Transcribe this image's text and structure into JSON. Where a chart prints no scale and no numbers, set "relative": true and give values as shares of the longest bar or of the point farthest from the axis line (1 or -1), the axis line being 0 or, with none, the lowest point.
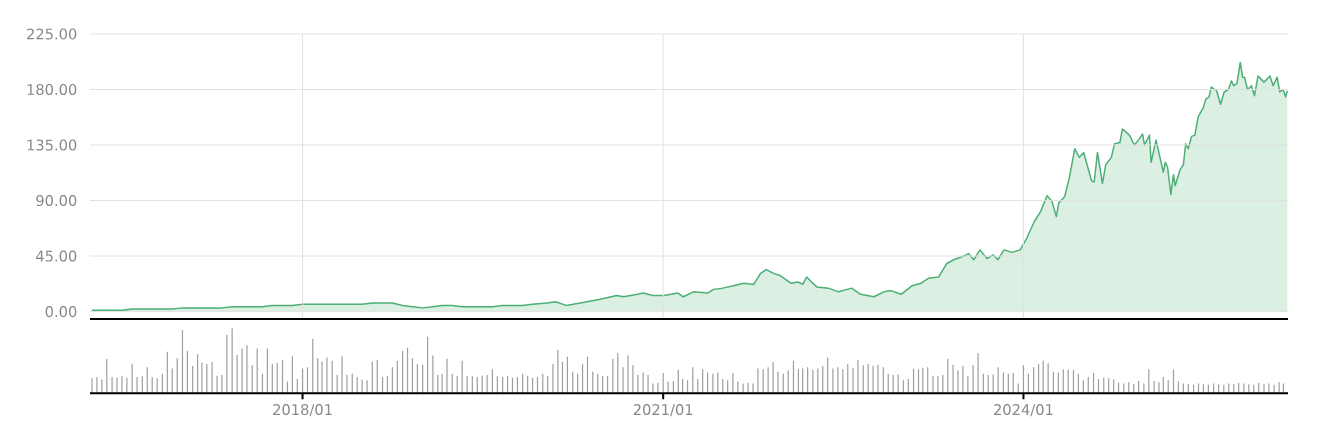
{
  "chart_data": [
    {
      "type": "area",
      "color": "#4caf75",
      "grid": true,
      "tick_labels": "y",
      "xlim": [
        "2016-03-26",
        "2026-03-15"
      ],
      "ylim": [
        -6,
        225
      ],
      "xticks": [
        {
          "value": "2018-01",
          "label": null
        },
        {
          "value": "2021-01",
          "label": null
        },
        {
          "value": "2024-01",
          "label": null
        }
      ],
      "yticks": [
        {
          "value": 0,
          "label": "0.00"
        },
        {
          "value": 45,
          "label": "45.00"
        },
        {
          "value": 90,
          "label": "90.00"
        },
        {
          "value": 135,
          "label": "135.00"
        },
        {
          "value": 180,
          "label": "180.00"
        },
        {
          "value": 225,
          "label": "225.00"
        }
      ],
      "x": [
        "2016-04-01",
        "2016-05-01",
        "2016-06-01",
        "2016-07-01",
        "2016-08-01",
        "2016-09-01",
        "2016-10-01",
        "2016-11-01",
        "2016-12-01",
        "2017-01-01",
        "2017-02-01",
        "2017-03-01",
        "2017-04-01",
        "2017-05-01",
        "2017-06-01",
        "2017-07-01",
        "2017-08-01",
        "2017-09-01",
        "2017-10-01",
        "2017-11-01",
        "2017-12-01",
        "2018-01-01",
        "2018-02-01",
        "2018-03-01",
        "2018-04-01",
        "2018-05-01",
        "2018-06-01",
        "2018-07-01",
        "2018-08-01",
        "2018-09-01",
        "2018-10-01",
        "2018-11-01",
        "2018-12-01",
        "2019-01-01",
        "2019-02-01",
        "2019-03-01",
        "2019-04-01",
        "2019-05-01",
        "2019-06-01",
        "2019-07-01",
        "2019-08-01",
        "2019-09-01",
        "2019-10-01",
        "2019-11-01",
        "2019-12-01",
        "2020-01-14",
        "2020-02-09",
        "2020-03-12",
        "2020-04-24",
        "2020-06-24",
        "2020-08-13",
        "2020-09-03",
        "2020-10-15",
        "2020-11-01",
        "2020-12-01",
        "2021-01-03",
        "2021-02-15",
        "2021-03-03",
        "2021-04-03",
        "2021-05-16",
        "2021-06-03",
        "2021-07-01",
        "2021-08-03",
        "2021-09-03",
        "2021-10-03",
        "2021-10-24",
        "2021-11-10",
        "2021-12-03",
        "2021-12-24",
        "2022-01-24",
        "2022-02-15",
        "2022-03-01",
        "2022-03-13",
        "2022-03-28",
        "2022-04-13",
        "2022-05-18",
        "2022-06-18",
        "2022-07-28",
        "2022-08-24",
        "2022-10-03",
        "2022-11-03",
        "2022-11-24",
        "2022-12-25",
        "2023-01-28",
        "2023-02-24",
        "2023-03-18",
        "2023-04-18",
        "2023-05-13",
        "2023-06-03",
        "2023-07-03",
        "2023-07-18",
        "2023-08-03",
        "2023-08-22",
        "2023-09-12",
        "2023-10-01",
        "2023-10-15",
        "2023-11-03",
        "2023-11-28",
        "2023-12-22",
        "2024-01-12",
        "2024-02-03",
        "2024-02-22",
        "2024-03-13",
        "2024-03-28",
        "2024-04-10",
        "2024-04-17",
        "2024-05-05",
        "2024-05-19",
        "2024-06-05",
        "2024-06-19",
        "2024-07-02",
        "2024-07-26",
        "2024-08-03",
        "2024-08-13",
        "2024-08-28",
        "2024-09-07",
        "2024-09-24",
        "2024-10-04",
        "2024-10-20",
        "2024-10-28",
        "2024-11-18",
        "2024-12-03",
        "2024-12-18",
        "2024-12-28",
        "2025-01-03",
        "2025-01-18",
        "2025-01-23",
        "2025-02-07",
        "2025-03-01",
        "2025-03-07",
        "2025-03-14",
        "2025-03-24",
        "2025-04-01",
        "2025-04-06",
        "2025-04-21",
        "2025-05-01",
        "2025-05-08",
        "2025-05-16",
        "2025-05-26",
        "2025-06-05",
        "2025-06-15",
        "2025-06-30",
        "2025-07-08",
        "2025-07-18",
        "2025-07-25",
        "2025-08-10",
        "2025-08-22",
        "2025-09-02",
        "2025-09-15",
        "2025-09-24",
        "2025-10-01",
        "2025-10-11",
        "2025-10-21",
        "2025-10-28",
        "2025-11-03",
        "2025-11-12",
        "2025-11-24",
        "2025-12-03",
        "2025-12-14",
        "2026-01-01",
        "2026-01-19",
        "2026-01-29",
        "2026-02-10",
        "2026-02-18",
        "2026-02-28",
        "2026-03-08",
        "2026-03-13"
      ],
      "values": [
        1,
        1,
        1,
        1,
        2,
        2,
        2,
        2,
        2,
        3,
        3,
        3,
        3,
        3,
        4,
        4,
        4,
        4,
        5,
        5,
        5,
        6,
        6,
        6,
        6,
        6,
        6,
        6,
        7,
        7,
        7,
        5,
        4,
        3,
        4,
        5,
        5,
        4,
        4,
        4,
        4,
        5,
        5,
        5,
        6,
        7,
        8,
        5,
        7,
        10,
        13,
        12,
        14,
        15,
        13,
        13,
        15,
        12,
        16,
        15,
        18,
        19,
        21,
        23,
        22,
        31,
        34,
        31,
        29,
        23,
        24,
        22,
        28,
        24,
        20,
        19,
        16,
        19,
        14,
        12,
        16,
        17,
        14,
        21,
        23,
        27,
        28,
        39,
        42,
        45,
        47,
        42,
        50,
        43,
        46,
        42,
        50,
        48,
        50,
        60,
        73,
        81,
        94,
        89,
        77,
        88,
        93,
        108,
        132,
        125,
        129,
        106,
        105,
        129,
        104,
        119,
        125,
        136,
        137,
        148,
        143,
        135,
        140,
        144,
        135,
        143,
        121,
        139,
        113,
        121,
        117,
        95,
        111,
        102,
        115,
        119,
        136,
        132,
        142,
        143,
        158,
        165,
        172,
        174,
        182,
        179,
        168,
        178,
        180,
        187,
        183,
        185,
        202,
        190,
        190,
        180,
        183,
        175,
        191,
        186,
        191,
        183,
        190,
        178,
        180,
        174,
        179
      ]
    },
    {
      "type": "bar",
      "color": "#9e9e9e",
      "relative": true,
      "tick_labels": "x",
      "xlim": [
        "2016-03-26",
        "2026-03-15"
      ],
      "xticks": [
        {
          "value": "2018-01",
          "label": "2018/01"
        },
        {
          "value": "2021-01",
          "label": "2021/01"
        },
        {
          "value": "2024-01",
          "label": "2024/01"
        }
      ],
      "x": [
        "2016-04-01",
        "2016-04-16",
        "2016-05-01",
        "2016-05-16",
        "2016-06-01",
        "2016-06-16",
        "2016-07-01",
        "2016-07-16",
        "2016-08-01",
        "2016-08-16",
        "2016-09-01",
        "2016-09-16",
        "2016-10-01",
        "2016-10-16",
        "2016-11-01",
        "2016-11-16",
        "2016-12-01",
        "2016-12-16",
        "2017-01-01",
        "2017-01-16",
        "2017-02-01",
        "2017-02-16",
        "2017-03-01",
        "2017-03-16",
        "2017-04-01",
        "2017-04-16",
        "2017-05-01",
        "2017-05-16",
        "2017-06-01",
        "2017-06-16",
        "2017-07-01",
        "2017-07-16",
        "2017-08-01",
        "2017-08-16",
        "2017-09-01",
        "2017-09-16",
        "2017-10-01",
        "2017-10-16",
        "2017-11-01",
        "2017-11-16",
        "2017-12-01",
        "2017-12-16",
        "2018-01-01",
        "2018-01-16",
        "2018-02-01",
        "2018-02-16",
        "2018-03-01",
        "2018-03-16",
        "2018-04-01",
        "2018-04-16",
        "2018-05-01",
        "2018-05-16",
        "2018-06-01",
        "2018-06-16",
        "2018-07-01",
        "2018-07-16",
        "2018-08-01",
        "2018-08-16",
        "2018-09-01",
        "2018-09-16",
        "2018-10-01",
        "2018-10-16",
        "2018-11-01",
        "2018-11-16",
        "2018-12-01",
        "2018-12-16",
        "2019-01-01",
        "2019-01-16",
        "2019-02-01",
        "2019-02-16",
        "2019-03-01",
        "2019-03-16",
        "2019-04-01",
        "2019-04-16",
        "2019-05-01",
        "2019-05-16",
        "2019-06-01",
        "2019-06-16",
        "2019-07-01",
        "2019-07-16",
        "2019-08-01",
        "2019-08-16",
        "2019-09-01",
        "2019-09-16",
        "2019-10-01",
        "2019-10-16",
        "2019-11-01",
        "2019-11-16",
        "2019-12-01",
        "2019-12-16",
        "2020-01-01",
        "2020-01-16",
        "2020-02-01",
        "2020-02-16",
        "2020-03-01",
        "2020-03-16",
        "2020-04-01",
        "2020-04-16",
        "2020-05-01",
        "2020-05-16",
        "2020-06-01",
        "2020-06-16",
        "2020-07-01",
        "2020-07-16",
        "2020-08-01",
        "2020-08-16",
        "2020-09-01",
        "2020-09-16",
        "2020-10-01",
        "2020-10-16",
        "2020-11-01",
        "2020-11-16",
        "2020-12-01",
        "2020-12-16",
        "2021-01-01",
        "2021-01-16",
        "2021-02-01",
        "2021-02-16",
        "2021-03-01",
        "2021-03-16",
        "2021-04-01",
        "2021-04-16",
        "2021-05-01",
        "2021-05-16",
        "2021-06-01",
        "2021-06-16",
        "2021-07-01",
        "2021-07-16",
        "2021-08-01",
        "2021-08-16",
        "2021-09-01",
        "2021-09-16",
        "2021-10-01",
        "2021-10-16",
        "2021-11-01",
        "2021-11-16",
        "2021-12-01",
        "2021-12-16",
        "2022-01-01",
        "2022-01-16",
        "2022-02-01",
        "2022-02-16",
        "2022-03-01",
        "2022-03-16",
        "2022-04-01",
        "2022-04-16",
        "2022-05-01",
        "2022-05-16",
        "2022-06-01",
        "2022-06-16",
        "2022-07-01",
        "2022-07-16",
        "2022-08-01",
        "2022-08-16",
        "2022-09-01",
        "2022-09-16",
        "2022-10-01",
        "2022-10-16",
        "2022-11-01",
        "2022-11-16",
        "2022-12-01",
        "2022-12-16",
        "2023-01-01",
        "2023-01-16",
        "2023-02-01",
        "2023-02-16",
        "2023-03-01",
        "2023-03-16",
        "2023-04-01",
        "2023-04-16",
        "2023-05-01",
        "2023-05-16",
        "2023-06-01",
        "2023-06-16",
        "2023-07-01",
        "2023-07-16",
        "2023-08-01",
        "2023-08-16",
        "2023-09-01",
        "2023-09-16",
        "2023-10-01",
        "2023-10-16",
        "2023-11-01",
        "2023-11-16",
        "2023-12-01",
        "2023-12-16",
        "2024-01-01",
        "2024-01-16",
        "2024-02-01",
        "2024-02-16",
        "2024-03-01",
        "2024-03-16",
        "2024-04-01",
        "2024-04-16",
        "2024-05-01",
        "2024-05-16",
        "2024-06-01",
        "2024-06-16",
        "2024-07-01",
        "2024-07-16",
        "2024-08-01",
        "2024-08-16",
        "2024-09-01",
        "2024-09-16",
        "2024-10-01",
        "2024-10-16",
        "2024-11-01",
        "2024-11-16",
        "2024-12-01",
        "2024-12-16",
        "2025-01-01",
        "2025-01-16",
        "2025-02-01",
        "2025-02-16",
        "2025-03-01",
        "2025-03-16",
        "2025-04-01",
        "2025-04-16",
        "2025-05-01",
        "2025-05-16",
        "2025-06-01",
        "2025-06-16",
        "2025-07-01",
        "2025-07-16",
        "2025-08-01",
        "2025-08-16",
        "2025-09-01",
        "2025-09-16",
        "2025-10-01",
        "2025-10-16",
        "2025-11-01",
        "2025-11-16",
        "2025-12-01",
        "2025-12-16",
        "2026-01-01",
        "2026-01-16",
        "2026-02-01",
        "2026-02-16",
        "2026-03-01"
      ],
      "values": [
        0.23,
        0.25,
        0.21,
        0.53,
        0.25,
        0.24,
        0.26,
        0.24,
        0.45,
        0.25,
        0.26,
        0.4,
        0.25,
        0.23,
        0.3,
        0.64,
        0.38,
        0.54,
        0.97,
        0.65,
        0.42,
        0.6,
        0.47,
        0.45,
        0.48,
        0.27,
        0.28,
        0.9,
        1,
        0.59,
        0.69,
        0.74,
        0.43,
        0.69,
        0.3,
        0.69,
        0.45,
        0.47,
        0.51,
        0.18,
        0.57,
        0.22,
        0.38,
        0.4,
        0.84,
        0.54,
        0.49,
        0.55,
        0.5,
        0.28,
        0.57,
        0.28,
        0.3,
        0.25,
        0.21,
        0.2,
        0.49,
        0.51,
        0.25,
        0.26,
        0.4,
        0.5,
        0.65,
        0.7,
        0.54,
        0.45,
        0.44,
        0.87,
        0.58,
        0.28,
        0.3,
        0.53,
        0.3,
        0.27,
        0.5,
        0.27,
        0.26,
        0.25,
        0.27,
        0.28,
        0.37,
        0.26,
        0.25,
        0.27,
        0.24,
        0.25,
        0.3,
        0.26,
        0.24,
        0.25,
        0.3,
        0.26,
        0.45,
        0.67,
        0.48,
        0.56,
        0.33,
        0.3,
        0.45,
        0.56,
        0.33,
        0.3,
        0.26,
        0.27,
        0.53,
        0.62,
        0.4,
        0.58,
        0.43,
        0.28,
        0.32,
        0.28,
        0.15,
        0.16,
        0.31,
        0.18,
        0.19,
        0.36,
        0.22,
        0.2,
        0.4,
        0.22,
        0.37,
        0.32,
        0.3,
        0.32,
        0.22,
        0.2,
        0.31,
        0.18,
        0.15,
        0.16,
        0.15,
        0.38,
        0.37,
        0.4,
        0.48,
        0.33,
        0.3,
        0.35,
        0.5,
        0.37,
        0.38,
        0.4,
        0.36,
        0.38,
        0.42,
        0.55,
        0.38,
        0.4,
        0.37,
        0.45,
        0.39,
        0.51,
        0.43,
        0.45,
        0.42,
        0.44,
        0.4,
        0.3,
        0.28,
        0.29,
        0.2,
        0.22,
        0.38,
        0.37,
        0.39,
        0.4,
        0.27,
        0.26,
        0.28,
        0.53,
        0.44,
        0.35,
        0.42,
        0.26,
        0.43,
        0.62,
        0.3,
        0.28,
        0.29,
        0.4,
        0.32,
        0.3,
        0.31,
        0.15,
        0.43,
        0.3,
        0.4,
        0.45,
        0.5,
        0.46,
        0.33,
        0.32,
        0.37,
        0.36,
        0.36,
        0.3,
        0.2,
        0.25,
        0.31,
        0.22,
        0.24,
        0.23,
        0.21,
        0.16,
        0.15,
        0.17,
        0.14,
        0.19,
        0.15,
        0.37,
        0.19,
        0.17,
        0.25,
        0.2,
        0.36,
        0.18,
        0.15,
        0.14,
        0.13,
        0.15,
        0.14,
        0.13,
        0.15,
        0.14,
        0.13,
        0.15,
        0.14,
        0.16,
        0.15,
        0.14,
        0.13,
        0.16,
        0.14,
        0.15,
        0.13,
        0.17,
        0.15
      ]
    }
  ]
}
